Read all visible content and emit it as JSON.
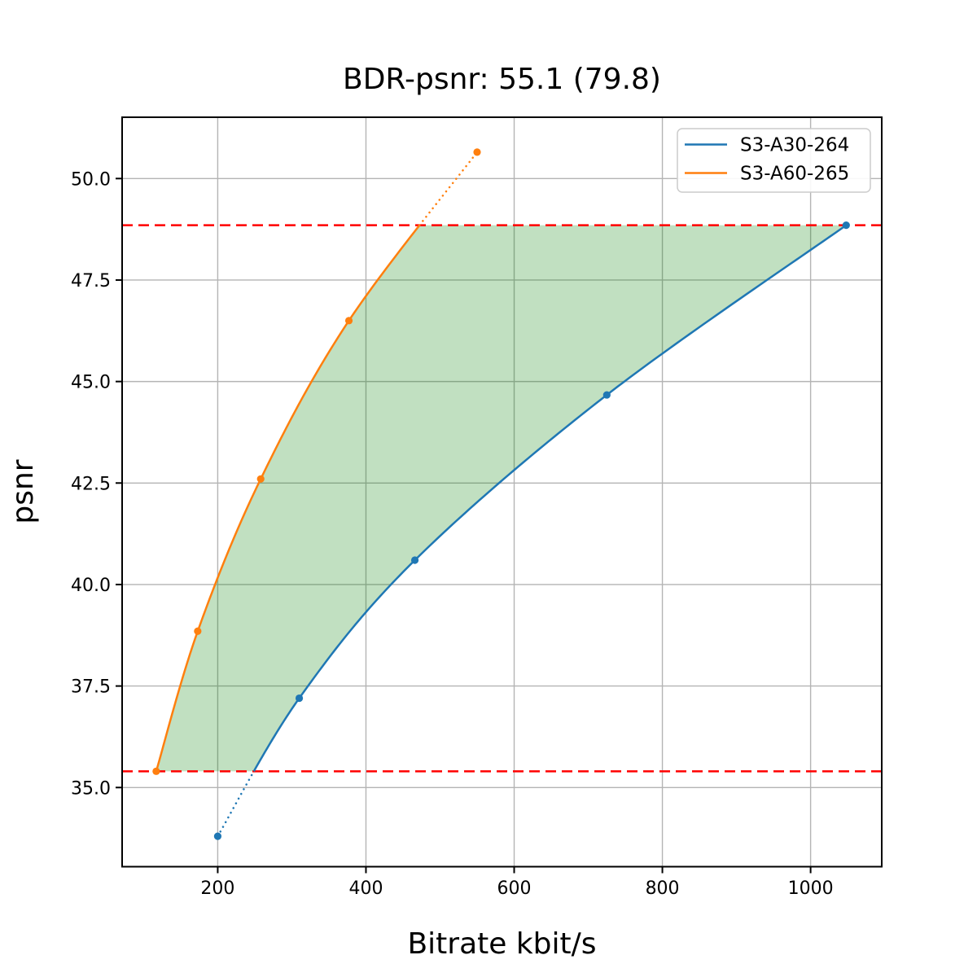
{
  "figure": {
    "title": "BDR-psnr: 55.1 (79.8)",
    "xlabel": "Bitrate kbit/s",
    "ylabel": "psnr"
  },
  "chart_data": {
    "type": "line",
    "title": "BDR-psnr: 55.1 (79.8)",
    "xlabel": "Bitrate kbit/s",
    "ylabel": "psnr",
    "xlim": [
      71,
      1096
    ],
    "ylim": [
      33.05,
      51.51
    ],
    "xticks": [
      200,
      400,
      600,
      800,
      1000
    ],
    "yticks": [
      35.0,
      37.5,
      40.0,
      42.5,
      45.0,
      47.5,
      50.0
    ],
    "grid": true,
    "grid_color": "#b4b4b4",
    "legend": {
      "position": "upper right",
      "entries": [
        {
          "label": "S3-A30-264",
          "color": "#1f77b4"
        },
        {
          "label": "S3-A60-265",
          "color": "#ff7f0e"
        }
      ]
    },
    "series": [
      {
        "name": "S3-A30-264",
        "color": "#1f77b4",
        "marker": "circle",
        "x": [
          200,
          310,
          466,
          725,
          1048
        ],
        "y": [
          33.8,
          37.2,
          40.6,
          44.67,
          48.85
        ],
        "dotted_segment": "below psnr 35.4"
      },
      {
        "name": "S3-A60-265",
        "color": "#ff7f0e",
        "marker": "circle",
        "x": [
          117,
          173,
          258,
          377,
          550
        ],
        "y": [
          35.4,
          38.85,
          42.6,
          46.5,
          50.65
        ],
        "dotted_segment": "above psnr 48.85"
      }
    ],
    "overlap_bounds": {
      "lower_psnr": 35.4,
      "upper_psnr": 48.85,
      "line_color": "#ff0000",
      "line_style": "dashed"
    },
    "shaded_region": {
      "description": "area between the two rate-distortion curves inside the psnr overlap interval",
      "color": "#008000",
      "opacity": 0.245
    }
  }
}
